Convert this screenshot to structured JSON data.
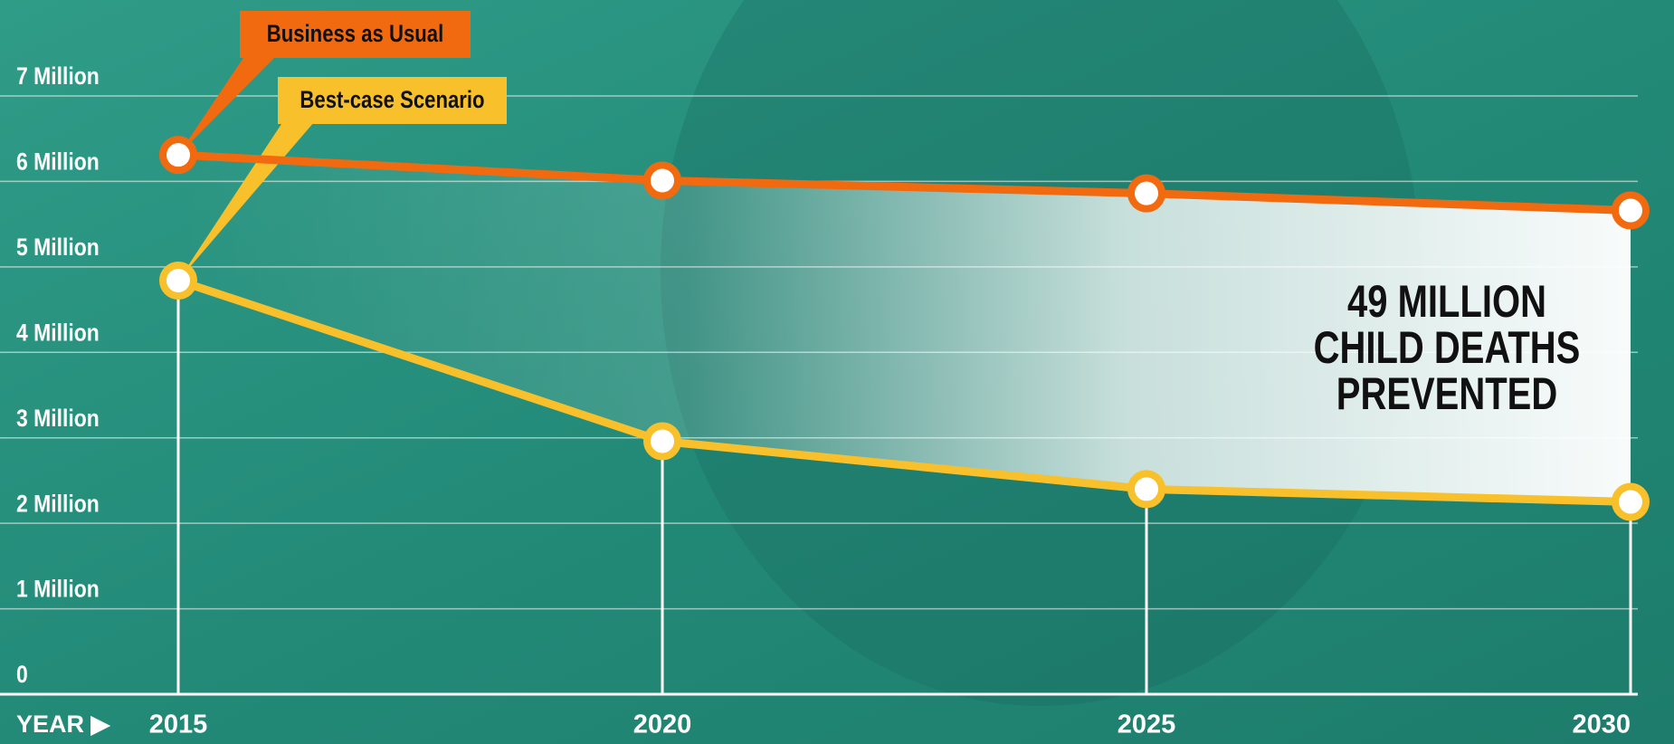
{
  "chart_data": {
    "type": "line",
    "x": [
      2015,
      2020,
      2025,
      2030
    ],
    "xlim": [
      2015,
      2030
    ],
    "x_label": "YEAR ▶",
    "ylim": [
      0,
      7
    ],
    "yticks": [
      0,
      {
        "value": 1,
        "label": "1 Million"
      },
      {
        "value": 2,
        "label": "2 Million"
      },
      {
        "value": 3,
        "label": "3 Million"
      },
      {
        "value": 4,
        "label": "4 Million"
      },
      {
        "value": 5,
        "label": "5 Million"
      },
      {
        "value": 6,
        "label": "6 Million"
      },
      {
        "value": 7,
        "label": "7 Million"
      }
    ],
    "grid": true,
    "series": [
      {
        "name": "Business as Usual",
        "color": "#f26a10",
        "values": [
          6.31,
          6.01,
          5.86,
          5.66
        ]
      },
      {
        "name": "Best-case Scenario",
        "color": "#f8c02a",
        "values": [
          4.84,
          2.96,
          2.4,
          2.25
        ]
      }
    ],
    "annotation": [
      "49 MILLION",
      "CHILD DEATHS",
      "PREVENTED"
    ]
  }
}
